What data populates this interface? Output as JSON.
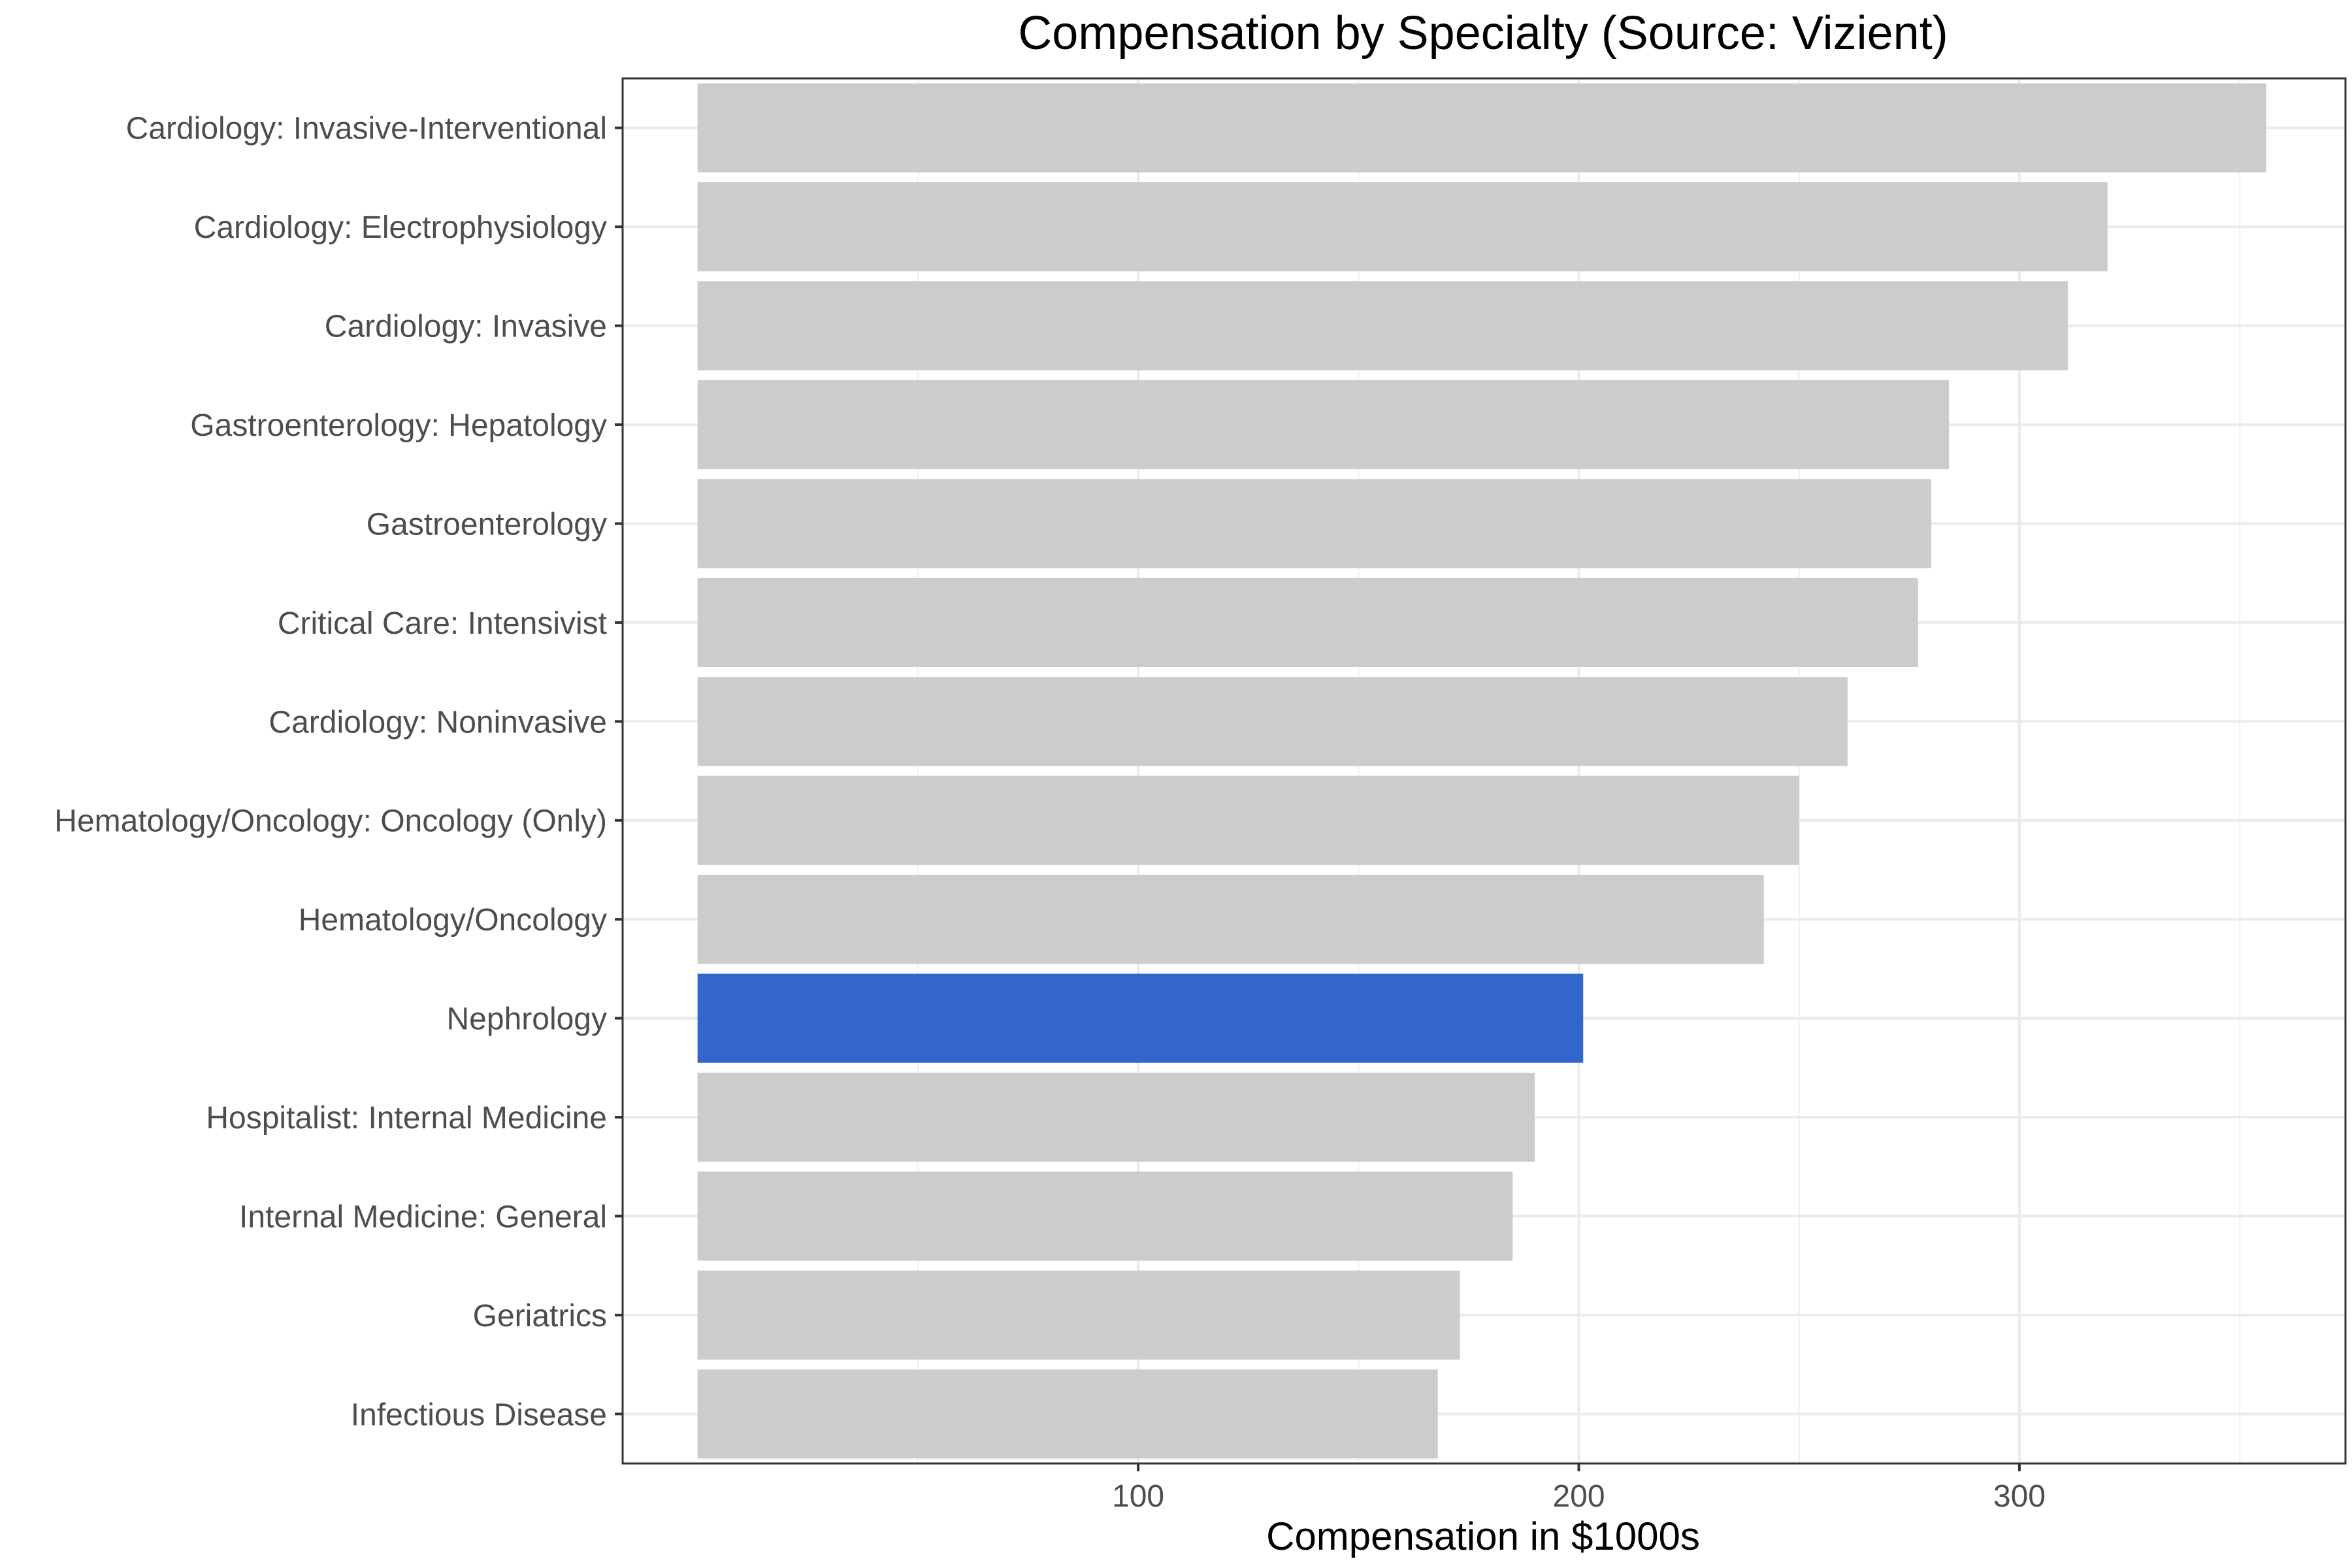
{
  "chart_data": {
    "type": "bar",
    "orientation": "horizontal",
    "title": "Compensation by Specialty (Source: Vizient)",
    "xlabel": "Compensation in $1000s",
    "ylabel": "",
    "xlim": [
      -17,
      374
    ],
    "xticks": [
      100,
      200,
      300
    ],
    "xtick_labels": [
      "100",
      "200",
      "300"
    ],
    "minor_gridlines": [
      50,
      150,
      250,
      350
    ],
    "grid": true,
    "legend": "none",
    "categories": [
      "Cardiology: Invasive-Interventional",
      "Cardiology: Electrophysiology",
      "Cardiology: Invasive",
      "Gastroenterology: Hepatology",
      "Gastroenterology",
      "Critical Care: Intensivist",
      "Cardiology: Noninvasive",
      "Hematology/Oncology: Oncology (Only)",
      "Hematology/Oncology",
      "Nephrology",
      "Hospitalist: Internal Medicine",
      "Internal Medicine: General",
      "Geriatrics",
      "Infectious Disease"
    ],
    "values": [
      356,
      320,
      311,
      284,
      280,
      277,
      261,
      250,
      242,
      201,
      190,
      185,
      173,
      168
    ],
    "highlight": "Nephrology",
    "colors": {
      "bar": "#cccccc",
      "highlight": "#3366cc",
      "background": "#ffffff",
      "border": "#333333",
      "grid_major": "#ebebeb",
      "grid_minor": "#f3f3f3"
    }
  }
}
